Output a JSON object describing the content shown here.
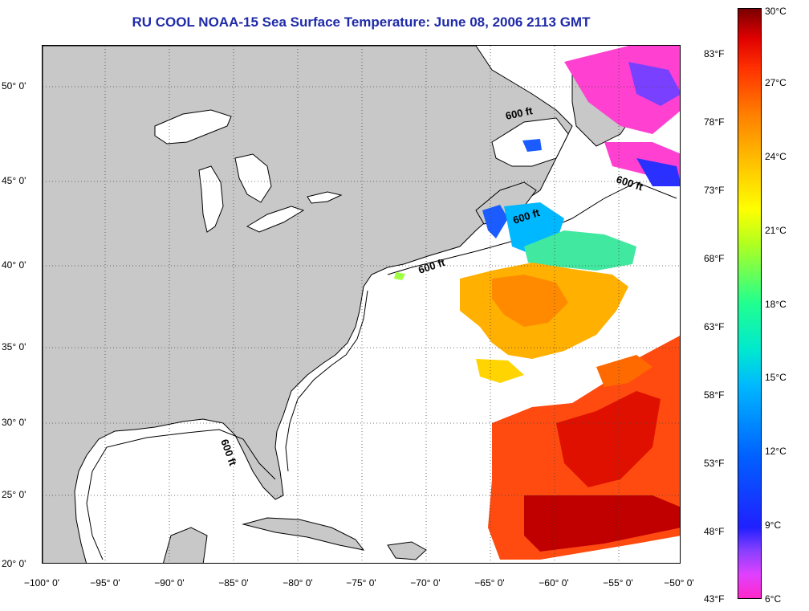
{
  "title": "RU COOL  NOAA-15  Sea Surface Temperature:  June 08, 2006 2113 GMT",
  "map": {
    "lat_labels": [
      "50° 0'",
      "45° 0'",
      "40° 0'",
      "35° 0'",
      "30° 0'",
      "25° 0'",
      "20° 0'"
    ],
    "lon_labels": [
      "−100° 0'",
      "−95° 0'",
      "−90° 0'",
      "−85° 0'",
      "−80° 0'",
      "−75° 0'",
      "−70° 0'",
      "−65° 0'",
      "−60° 0'",
      "−55° 0'",
      "−50° 0'"
    ],
    "isobath_labels": [
      "600 ft",
      "600 ft",
      "600 ft",
      "600 ft",
      "600 ft"
    ],
    "colors": {
      "land": "#c8c8c8",
      "ocean": "#ffffff",
      "title": "#1f2aa8"
    }
  },
  "colorbar": {
    "fahrenheit_labels": [
      "83°F",
      "78°F",
      "73°F",
      "68°F",
      "63°F",
      "58°F",
      "53°F",
      "48°F",
      "43°F"
    ],
    "celsius_labels": [
      "30°C",
      "27°C",
      "24°C",
      "21°C",
      "18°C",
      "15°C",
      "12°C",
      "9°C",
      "6°C"
    ]
  }
}
